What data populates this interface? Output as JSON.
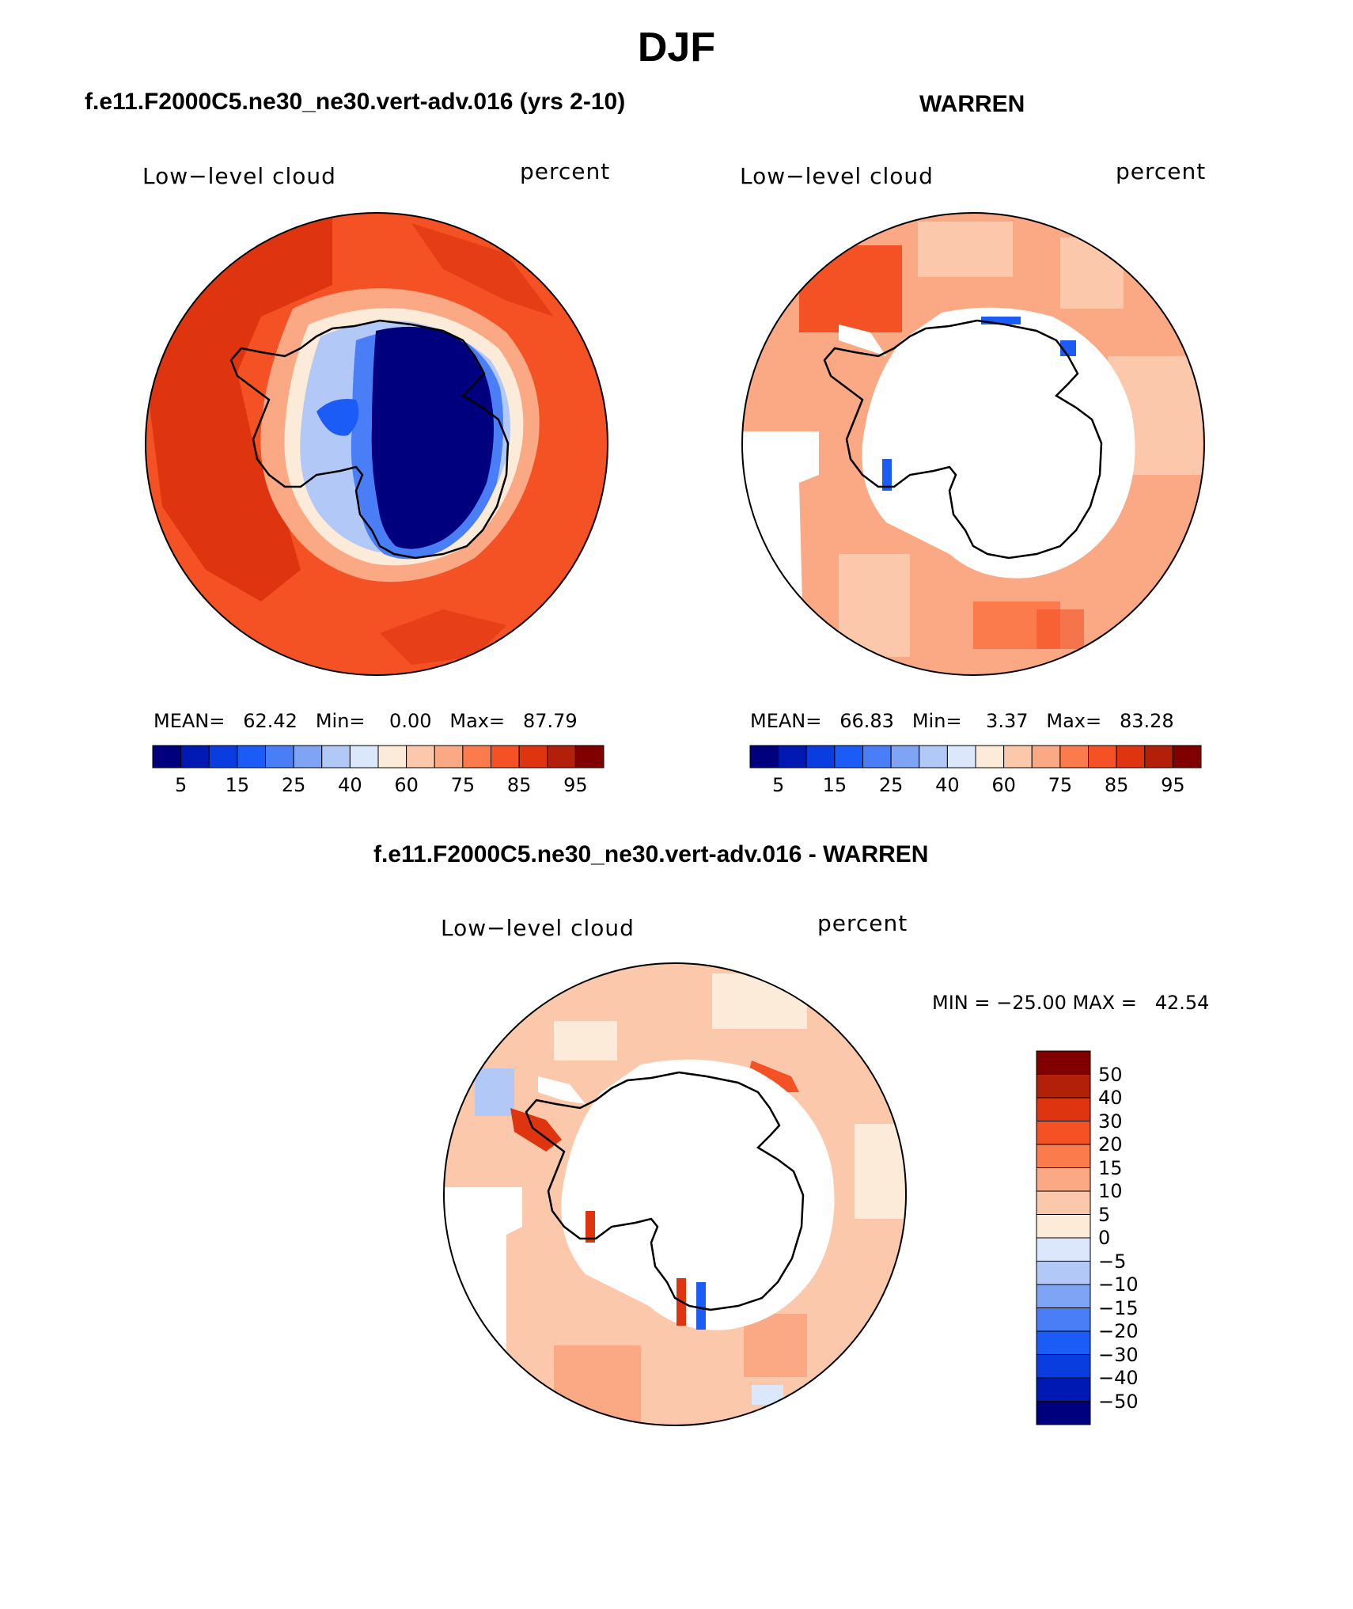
{
  "figure": {
    "season_title": "DJF"
  },
  "panels": {
    "model": {
      "header": "f.e11.F2000C5.ne30_ne30.vert-adv.016 (yrs 2-10)",
      "left_label": "Low−level cloud",
      "right_label": "percent",
      "stats": "MEAN=   62.42   Min=    0.00   Max=   87.79",
      "mean": 62.42,
      "min": 0.0,
      "max": 87.79
    },
    "obs": {
      "header": "WARREN",
      "left_label": "Low−level cloud",
      "right_label": "percent",
      "stats": "MEAN=   66.83   Min=    3.37   Max=   83.28",
      "mean": 66.83,
      "min": 3.37,
      "max": 83.28
    },
    "diff": {
      "header": "f.e11.F2000C5.ne30_ne30.vert-adv.016 - WARREN",
      "left_label": "Low−level cloud",
      "right_label": "percent",
      "minmax": "MIN = −25.00 MAX =   42.54",
      "min": -25.0,
      "max": 42.54
    }
  },
  "colorbars": {
    "absolute": {
      "labels": [
        "5",
        "15",
        "25",
        "40",
        "60",
        "75",
        "85",
        "95"
      ],
      "colors": [
        "#00007f",
        "#0019b3",
        "#0a3de0",
        "#1a5cf5",
        "#4a7ef7",
        "#7fa4f5",
        "#b2c9f7",
        "#dbe8fb",
        "#fdebd9",
        "#fcc8ac",
        "#fba884",
        "#fb7b4c",
        "#f45124",
        "#de3510",
        "#b3200a",
        "#800000"
      ]
    },
    "difference": {
      "labels": [
        "50",
        "40",
        "30",
        "20",
        "15",
        "10",
        "5",
        "0",
        "−5",
        "−10",
        "−15",
        "−20",
        "−30",
        "−40",
        "−50"
      ],
      "colors": [
        "#800000",
        "#b3200a",
        "#de3510",
        "#f45124",
        "#fb7b4c",
        "#fba884",
        "#fcc8ac",
        "#fdebd9",
        "#dbe8fb",
        "#b2c9f7",
        "#7fa4f5",
        "#4a7ef7",
        "#1a5cf5",
        "#0a3de0",
        "#0019b3",
        "#00007f"
      ]
    }
  }
}
